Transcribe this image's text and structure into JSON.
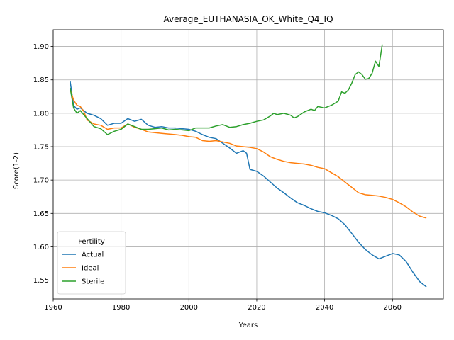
{
  "chart_data": {
    "type": "line",
    "title": "Average_EUTHANASIA_OK_White_Q4_IQ",
    "xlabel": "Years",
    "ylabel": "Score(1-2)",
    "xlim": [
      1960,
      2075
    ],
    "ylim": [
      1.522,
      1.925
    ],
    "xticks": [
      1960,
      1980,
      2000,
      2020,
      2040,
      2060
    ],
    "yticks": [
      1.55,
      1.6,
      1.65,
      1.7,
      1.75,
      1.8,
      1.85,
      1.9
    ],
    "xtick_labels": [
      "1960",
      "1980",
      "2000",
      "2020",
      "2040",
      "2060"
    ],
    "ytick_labels": [
      "1.55",
      "1.60",
      "1.65",
      "1.70",
      "1.75",
      "1.80",
      "1.85",
      "1.90"
    ],
    "grid": true,
    "legend": {
      "title": "Fertility",
      "position": "lower-left"
    },
    "series": [
      {
        "name": "Actual",
        "color": "#1f77b4",
        "x": [
          1965,
          1966,
          1967,
          1968,
          1969,
          1970,
          1972,
          1974,
          1976,
          1978,
          1980,
          1982,
          1984,
          1986,
          1988,
          1990,
          1992,
          1994,
          1996,
          1998,
          2000,
          2002,
          2004,
          2006,
          2008,
          2010,
          2012,
          2014,
          2016,
          2017,
          2018,
          2020,
          2022,
          2024,
          2026,
          2028,
          2030,
          2032,
          2034,
          2036,
          2038,
          2040,
          2042,
          2044,
          2046,
          2048,
          2050,
          2052,
          2054,
          2056,
          2058,
          2060,
          2062,
          2064,
          2066,
          2068,
          2070
        ],
        "y": [
          1.848,
          1.812,
          1.806,
          1.808,
          1.804,
          1.8,
          1.797,
          1.792,
          1.782,
          1.785,
          1.785,
          1.792,
          1.788,
          1.791,
          1.782,
          1.779,
          1.78,
          1.778,
          1.778,
          1.777,
          1.776,
          1.773,
          1.768,
          1.764,
          1.762,
          1.755,
          1.748,
          1.74,
          1.744,
          1.74,
          1.716,
          1.713,
          1.706,
          1.697,
          1.688,
          1.681,
          1.673,
          1.666,
          1.662,
          1.657,
          1.653,
          1.651,
          1.647,
          1.642,
          1.633,
          1.62,
          1.607,
          1.596,
          1.588,
          1.582,
          1.586,
          1.59,
          1.588,
          1.578,
          1.562,
          1.548,
          1.54
        ]
      },
      {
        "name": "Ideal",
        "color": "#ff7f0e",
        "x": [
          1965,
          1966,
          1967,
          1968,
          1969,
          1970,
          1972,
          1974,
          1976,
          1978,
          1980,
          1982,
          1984,
          1986,
          1988,
          1990,
          1992,
          1994,
          1996,
          1998,
          2000,
          2002,
          2004,
          2006,
          2008,
          2010,
          2012,
          2014,
          2016,
          2018,
          2020,
          2022,
          2024,
          2026,
          2028,
          2030,
          2032,
          2034,
          2036,
          2038,
          2040,
          2042,
          2044,
          2046,
          2048,
          2050,
          2052,
          2054,
          2056,
          2058,
          2060,
          2062,
          2064,
          2066,
          2068,
          2070
        ],
        "y": [
          1.836,
          1.82,
          1.812,
          1.81,
          1.803,
          1.79,
          1.784,
          1.782,
          1.776,
          1.778,
          1.778,
          1.784,
          1.779,
          1.776,
          1.772,
          1.771,
          1.77,
          1.769,
          1.768,
          1.767,
          1.765,
          1.764,
          1.759,
          1.758,
          1.759,
          1.757,
          1.755,
          1.751,
          1.75,
          1.749,
          1.747,
          1.742,
          1.735,
          1.731,
          1.728,
          1.726,
          1.725,
          1.724,
          1.722,
          1.719,
          1.717,
          1.711,
          1.705,
          1.697,
          1.689,
          1.681,
          1.678,
          1.677,
          1.676,
          1.674,
          1.671,
          1.666,
          1.66,
          1.652,
          1.646,
          1.643
        ]
      },
      {
        "name": "Sterile",
        "color": "#2ca02c",
        "x": [
          1965,
          1966,
          1967,
          1968,
          1969,
          1970,
          1972,
          1974,
          1976,
          1978,
          1980,
          1982,
          1984,
          1986,
          1988,
          1990,
          1992,
          1994,
          1996,
          1998,
          2000,
          2002,
          2004,
          2006,
          2008,
          2010,
          2012,
          2014,
          2016,
          2018,
          2020,
          2022,
          2024,
          2025,
          2026,
          2028,
          2030,
          2031,
          2032,
          2034,
          2036,
          2037,
          2038,
          2040,
          2042,
          2044,
          2045,
          2046,
          2047,
          2048,
          2049,
          2050,
          2051,
          2052,
          2053,
          2054,
          2055,
          2056,
          2057
        ],
        "y": [
          1.838,
          1.808,
          1.8,
          1.804,
          1.798,
          1.792,
          1.78,
          1.777,
          1.768,
          1.773,
          1.776,
          1.784,
          1.78,
          1.776,
          1.776,
          1.777,
          1.778,
          1.775,
          1.776,
          1.775,
          1.774,
          1.778,
          1.778,
          1.778,
          1.781,
          1.783,
          1.779,
          1.78,
          1.783,
          1.785,
          1.788,
          1.79,
          1.796,
          1.8,
          1.798,
          1.8,
          1.797,
          1.793,
          1.795,
          1.802,
          1.806,
          1.804,
          1.81,
          1.808,
          1.812,
          1.818,
          1.832,
          1.83,
          1.835,
          1.845,
          1.858,
          1.862,
          1.858,
          1.851,
          1.852,
          1.86,
          1.878,
          1.87,
          1.903
        ]
      }
    ]
  }
}
